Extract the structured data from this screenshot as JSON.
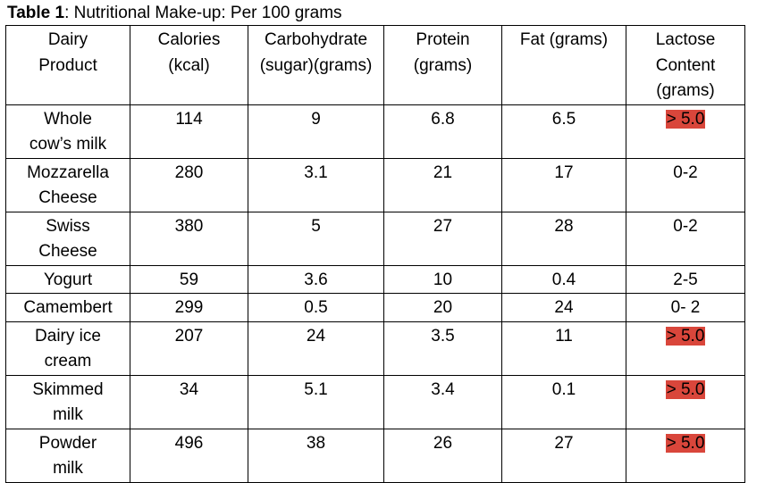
{
  "caption": {
    "label": "Table 1",
    "text": ": Nutritional Make-up: Per 100 grams"
  },
  "columns": [
    [
      "Dairy",
      "Product"
    ],
    [
      "Calories",
      "(kcal)"
    ],
    [
      "Carbohydrate",
      "(sugar)(grams)"
    ],
    [
      "Protein",
      "(grams)"
    ],
    [
      "Fat (grams)"
    ],
    [
      "Lactose",
      "Content",
      "(grams)"
    ]
  ],
  "rows": [
    {
      "product": [
        "Whole",
        "cow’s milk"
      ],
      "calories": "114",
      "carbohydrate": "9",
      "protein": "6.8",
      "fat": "6.5",
      "lactose": "> 5.0",
      "lactose_highlight": true
    },
    {
      "product": [
        "Mozzarella",
        "Cheese"
      ],
      "calories": "280",
      "carbohydrate": "3.1",
      "protein": "21",
      "fat": "17",
      "lactose": "0-2",
      "lactose_highlight": false
    },
    {
      "product": [
        "Swiss",
        "Cheese"
      ],
      "calories": "380",
      "carbohydrate": "5",
      "protein": "27",
      "fat": "28",
      "lactose": "0-2",
      "lactose_highlight": false
    },
    {
      "product": [
        "Yogurt"
      ],
      "calories": "59",
      "carbohydrate": "3.6",
      "protein": "10",
      "fat": "0.4",
      "lactose": "2-5",
      "lactose_highlight": false
    },
    {
      "product": [
        "Camembert"
      ],
      "calories": "299",
      "carbohydrate": "0.5",
      "protein": "20",
      "fat": "24",
      "lactose": "0- 2",
      "lactose_highlight": false
    },
    {
      "product": [
        "Dairy ice",
        "cream"
      ],
      "calories": "207",
      "carbohydrate": "24",
      "protein": "3.5",
      "fat": "11",
      "lactose": "> 5.0",
      "lactose_highlight": true
    },
    {
      "product": [
        "Skimmed",
        "milk"
      ],
      "calories": "34",
      "carbohydrate": "5.1",
      "protein": "3.4",
      "fat": "0.1",
      "lactose": "> 5.0",
      "lactose_highlight": true
    },
    {
      "product": [
        "Powder",
        "milk"
      ],
      "calories": "496",
      "carbohydrate": "38",
      "protein": "26",
      "fat": "27",
      "lactose": "> 5.0",
      "lactose_highlight": true
    }
  ],
  "colors": {
    "highlight": "#d9463b",
    "border": "#000000",
    "text": "#000000",
    "background": "#ffffff"
  }
}
